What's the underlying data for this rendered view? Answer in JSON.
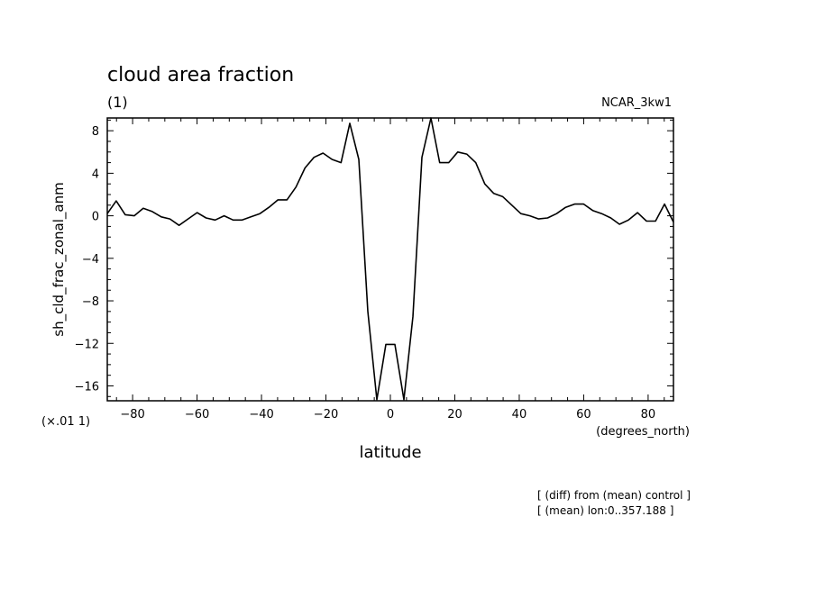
{
  "chart_data": {
    "type": "line",
    "title": "cloud area fraction",
    "units": "(1)",
    "model": "NCAR_3kw1",
    "ylabel": "sh_cld_frac_zonal_anm",
    "xlabel": "latitude",
    "x_units": "(degrees_north)",
    "y_scale_note": "(×.01 1)",
    "notes": [
      "[ (diff) from (mean) control ]",
      "[ (mean) lon:0..357.188 ]"
    ],
    "xlim": [
      -87.86,
      87.86
    ],
    "ylim": [
      -17.4,
      9.2
    ],
    "x_ticks": [
      -80,
      -60,
      -40,
      -20,
      0,
      20,
      40,
      60,
      80
    ],
    "y_ticks": [
      8,
      4,
      0,
      -4,
      -8,
      -12,
      -16
    ],
    "grid": false,
    "series": [
      {
        "x": [
          -87.86,
          -85.1,
          -82.3,
          -79.5,
          -76.7,
          -73.9,
          -71.1,
          -68.4,
          -65.6,
          -62.8,
          -60.0,
          -57.2,
          -54.4,
          -51.6,
          -48.8,
          -46.0,
          -43.3,
          -40.5,
          -37.7,
          -34.9,
          -32.1,
          -29.3,
          -26.5,
          -23.7,
          -20.9,
          -18.1,
          -15.3,
          -12.6,
          -9.8,
          -7.0,
          -4.2,
          -1.4,
          1.4,
          4.2,
          7.0,
          9.8,
          12.6,
          15.3,
          18.1,
          20.9,
          23.7,
          26.5,
          29.3,
          32.1,
          34.9,
          37.7,
          40.5,
          43.3,
          46.0,
          48.8,
          51.6,
          54.4,
          57.2,
          60.0,
          62.8,
          65.6,
          68.4,
          71.1,
          73.9,
          76.7,
          79.5,
          82.3,
          85.1,
          87.86
        ],
        "values": [
          0.2,
          1.4,
          0.1,
          0.0,
          0.7,
          0.4,
          -0.1,
          -0.3,
          -0.9,
          -0.3,
          0.3,
          -0.2,
          -0.4,
          0.0,
          -0.4,
          -0.4,
          -0.1,
          0.2,
          0.8,
          1.5,
          1.5,
          2.7,
          4.5,
          5.5,
          5.9,
          5.3,
          5.0,
          8.7,
          5.3,
          -9.0,
          -17.3,
          -12.1,
          -12.1,
          -17.3,
          -9.5,
          5.5,
          9.2,
          5.0,
          5.0,
          6.0,
          5.8,
          5.0,
          3.0,
          2.1,
          1.8,
          1.0,
          0.2,
          0.0,
          -0.3,
          -0.2,
          0.2,
          0.8,
          1.1,
          1.1,
          0.5,
          0.2,
          -0.2,
          -0.8,
          -0.4,
          0.3,
          -0.5,
          -0.5,
          1.1,
          -0.6
        ]
      }
    ]
  }
}
